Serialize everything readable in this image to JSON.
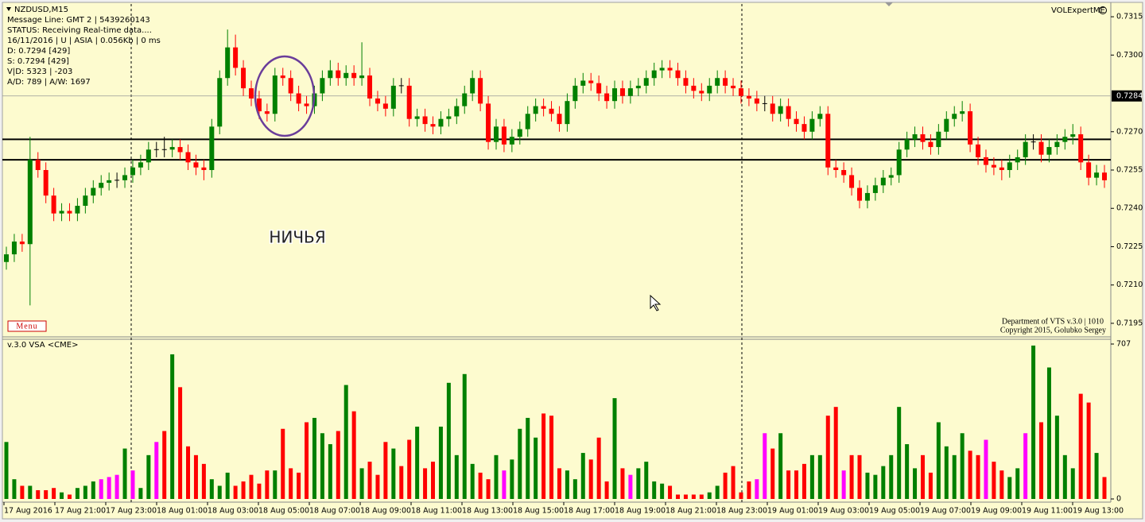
{
  "chart_data": [
    {
      "type": "candlestick",
      "title": "NZDUSD,M15",
      "info_lines": [
        "Message Line: GMT 2 | 5439260143",
        "STATUS:  Receiving Real-time data....",
        "16/11/2016 | U | ASIA | 0.056Kb | 0 ms",
        "D: 0.7294  [429]",
        "S: 0.7294  [429]",
        "V|D: 5323 | -203",
        "A/D: 789 | A/W: 1697"
      ],
      "indicator_label": "VOLExpertME",
      "annotation": "НИЧЬЯ",
      "menu": "Menu",
      "footer": [
        "Department of VTS  v.3.0 | 1010",
        "Copyright 2015, Golubko Sergey"
      ],
      "up_color": "green",
      "down_color": "red",
      "doji_color": "black",
      "open": [
        0.7219,
        0.7222,
        0.7227,
        0.7226,
        0.7259,
        0.7255,
        0.7245,
        0.7238,
        0.7239,
        0.7238,
        0.7241,
        0.7245,
        0.7248,
        0.725,
        0.7251,
        0.7251,
        0.7253,
        0.7256,
        0.7258,
        0.7263,
        0.7263,
        0.7263,
        0.7264,
        0.7262,
        0.7258,
        0.7256,
        0.7255,
        0.7272,
        0.7291,
        0.7303,
        0.7295,
        0.7287,
        0.7283,
        0.7278,
        0.7277,
        0.7292,
        0.7291,
        0.7285,
        0.7281,
        0.728,
        0.7285,
        0.7291,
        0.7294,
        0.7291,
        0.7293,
        0.7291,
        0.7292,
        0.7283,
        0.7281,
        0.7279,
        0.7288,
        0.7288,
        0.7275,
        0.7276,
        0.7273,
        0.7272,
        0.7275,
        0.7276,
        0.728,
        0.7285,
        0.7291,
        0.7281,
        0.7266,
        0.7272,
        0.7265,
        0.7268,
        0.7271,
        0.7277,
        0.728,
        0.7279,
        0.7277,
        0.7273,
        0.7282,
        0.7288,
        0.729,
        0.7289,
        0.7285,
        0.7282,
        0.7287,
        0.7284,
        0.7287,
        0.7288,
        0.7291,
        0.7294,
        0.7295,
        0.7294,
        0.7291,
        0.7288,
        0.7286,
        0.7285,
        0.7288,
        0.7291,
        0.7288,
        0.7287,
        0.7284,
        0.7283,
        0.7281,
        0.7281,
        0.7277,
        0.728,
        0.7275,
        0.7273,
        0.727,
        0.7275,
        0.7277,
        0.7256,
        0.7255,
        0.7253,
        0.7248,
        0.7243,
        0.7246,
        0.7249,
        0.7252,
        0.7253,
        0.7263,
        0.7267,
        0.7269,
        0.7266,
        0.7264,
        0.727,
        0.7275,
        0.7277,
        0.7278,
        0.7265,
        0.726,
        0.7257,
        0.7256,
        0.7255,
        0.7258,
        0.726,
        0.7266,
        0.7266,
        0.7261,
        0.7264,
        0.7266,
        0.7268,
        0.7269,
        0.7258,
        0.7252,
        0.7254
      ],
      "high": [
        0.7225,
        0.723,
        0.723,
        0.7268,
        0.7262,
        0.7258,
        0.7248,
        0.7242,
        0.7242,
        0.7244,
        0.7248,
        0.7251,
        0.7253,
        0.7254,
        0.7254,
        0.7256,
        0.7259,
        0.7261,
        0.7266,
        0.7266,
        0.7268,
        0.7267,
        0.7267,
        0.7265,
        0.7261,
        0.7259,
        0.7275,
        0.7294,
        0.731,
        0.7308,
        0.7298,
        0.729,
        0.7286,
        0.7281,
        0.7295,
        0.7295,
        0.7294,
        0.7288,
        0.7284,
        0.7288,
        0.7294,
        0.7298,
        0.7297,
        0.7296,
        0.7296,
        0.7305,
        0.7295,
        0.7286,
        0.7284,
        0.7291,
        0.7291,
        0.7291,
        0.7279,
        0.7279,
        0.7276,
        0.7278,
        0.7279,
        0.7283,
        0.7288,
        0.7294,
        0.7294,
        0.7284,
        0.7275,
        0.7275,
        0.7271,
        0.7274,
        0.728,
        0.7283,
        0.7283,
        0.7282,
        0.728,
        0.7285,
        0.7291,
        0.7293,
        0.7293,
        0.7292,
        0.7288,
        0.729,
        0.729,
        0.729,
        0.7291,
        0.7294,
        0.7297,
        0.7298,
        0.7298,
        0.7297,
        0.7294,
        0.7291,
        0.7289,
        0.7291,
        0.7294,
        0.7294,
        0.7291,
        0.729,
        0.7287,
        0.7286,
        0.7284,
        0.7284,
        0.7283,
        0.7283,
        0.7278,
        0.7276,
        0.7278,
        0.728,
        0.728,
        0.7259,
        0.7258,
        0.7256,
        0.7251,
        0.7249,
        0.7252,
        0.7255,
        0.7256,
        0.7266,
        0.727,
        0.7272,
        0.7272,
        0.7269,
        0.7273,
        0.7278,
        0.728,
        0.7282,
        0.7281,
        0.7268,
        0.7263,
        0.726,
        0.7259,
        0.7261,
        0.7263,
        0.7269,
        0.7269,
        0.7269,
        0.7267,
        0.7269,
        0.7271,
        0.7273,
        0.7272,
        0.7261,
        0.7257,
        0.7257
      ],
      "low": [
        0.7216,
        0.7219,
        0.7223,
        0.7202,
        0.7252,
        0.7242,
        0.7235,
        0.7235,
        0.7235,
        0.7235,
        0.7238,
        0.7242,
        0.7245,
        0.7247,
        0.7248,
        0.7248,
        0.725,
        0.7253,
        0.7255,
        0.726,
        0.726,
        0.726,
        0.7259,
        0.7255,
        0.7253,
        0.7251,
        0.7252,
        0.7269,
        0.7288,
        0.7292,
        0.7284,
        0.728,
        0.7275,
        0.7274,
        0.7274,
        0.7288,
        0.7282,
        0.7278,
        0.7277,
        0.7277,
        0.7282,
        0.7288,
        0.7288,
        0.7288,
        0.7288,
        0.7288,
        0.728,
        0.7278,
        0.7276,
        0.7276,
        0.7285,
        0.7272,
        0.7272,
        0.727,
        0.7269,
        0.7269,
        0.7272,
        0.7273,
        0.7277,
        0.7282,
        0.7278,
        0.7263,
        0.7263,
        0.7262,
        0.7262,
        0.7265,
        0.7268,
        0.7274,
        0.7276,
        0.7274,
        0.727,
        0.727,
        0.7279,
        0.7285,
        0.7286,
        0.7282,
        0.7279,
        0.7279,
        0.7281,
        0.7281,
        0.7284,
        0.7285,
        0.7288,
        0.7291,
        0.7291,
        0.7288,
        0.7285,
        0.7283,
        0.7282,
        0.7282,
        0.7285,
        0.7285,
        0.7284,
        0.7281,
        0.728,
        0.7278,
        0.7278,
        0.7274,
        0.7274,
        0.7272,
        0.727,
        0.7267,
        0.7267,
        0.7272,
        0.7253,
        0.7252,
        0.725,
        0.7245,
        0.724,
        0.724,
        0.7243,
        0.7246,
        0.7249,
        0.725,
        0.726,
        0.7264,
        0.7263,
        0.7261,
        0.7261,
        0.7267,
        0.7272,
        0.7274,
        0.7262,
        0.7257,
        0.7254,
        0.7253,
        0.7251,
        0.7252,
        0.7255,
        0.7257,
        0.7263,
        0.7258,
        0.7258,
        0.7261,
        0.7263,
        0.7265,
        0.7255,
        0.7249,
        0.7249,
        0.7248
      ],
      "close": [
        0.7222,
        0.7227,
        0.7226,
        0.7259,
        0.7255,
        0.7245,
        0.7238,
        0.7239,
        0.7238,
        0.7241,
        0.7245,
        0.7248,
        0.725,
        0.7251,
        0.7251,
        0.7253,
        0.7256,
        0.7258,
        0.7263,
        0.7263,
        0.7263,
        0.7264,
        0.7262,
        0.7258,
        0.7256,
        0.7255,
        0.7272,
        0.7291,
        0.7303,
        0.7295,
        0.7287,
        0.7283,
        0.7278,
        0.7277,
        0.7292,
        0.7291,
        0.7285,
        0.7281,
        0.728,
        0.7285,
        0.7291,
        0.7294,
        0.7291,
        0.7293,
        0.7291,
        0.7292,
        0.7283,
        0.7281,
        0.7279,
        0.7288,
        0.7288,
        0.7275,
        0.7276,
        0.7273,
        0.7272,
        0.7275,
        0.7276,
        0.728,
        0.7285,
        0.7291,
        0.7281,
        0.7266,
        0.7272,
        0.7265,
        0.7268,
        0.7271,
        0.7277,
        0.728,
        0.7279,
        0.7277,
        0.7273,
        0.7282,
        0.7288,
        0.729,
        0.7289,
        0.7285,
        0.7282,
        0.7287,
        0.7284,
        0.7287,
        0.7288,
        0.7291,
        0.7294,
        0.7295,
        0.7294,
        0.7291,
        0.7288,
        0.7286,
        0.7285,
        0.7288,
        0.7291,
        0.7288,
        0.7287,
        0.7284,
        0.7283,
        0.7281,
        0.7281,
        0.7277,
        0.728,
        0.7275,
        0.7273,
        0.727,
        0.7275,
        0.7277,
        0.7256,
        0.7255,
        0.7253,
        0.7248,
        0.7243,
        0.7246,
        0.7249,
        0.7252,
        0.7253,
        0.7263,
        0.7267,
        0.7269,
        0.7266,
        0.7264,
        0.727,
        0.7275,
        0.7277,
        0.7278,
        0.7265,
        0.726,
        0.7257,
        0.7256,
        0.7255,
        0.7258,
        0.726,
        0.7266,
        0.7266,
        0.7261,
        0.7264,
        0.7266,
        0.7268,
        0.7269,
        0.7258,
        0.7252,
        0.7254,
        0.7251
      ],
      "ylim": [
        0.719,
        0.732
      ],
      "yticks": [
        0.7315,
        {
          "value": 0.73,
          "label": "0.7300"
        },
        {
          "value": 0.727,
          "label": "0.7270"
        },
        0.7255,
        {
          "value": 0.724,
          "label": "0.7240"
        },
        0.7225,
        {
          "value": 0.721,
          "label": "0.7210"
        },
        0.7195
      ],
      "current_price": 0.7284,
      "levels": [
        0.7267,
        0.7259
      ],
      "x_labels": [
        "17 Aug 2016",
        "17 Aug 21:00",
        "17 Aug 23:00",
        "18 Aug 01:00",
        "18 Aug 03:00",
        "18 Aug 05:00",
        "18 Aug 07:00",
        "18 Aug 09:00",
        "18 Aug 11:00",
        "18 Aug 13:00",
        "18 Aug 15:00",
        "18 Aug 17:00",
        "18 Aug 19:00",
        "18 Aug 21:00",
        "18 Aug 23:00",
        "19 Aug 01:00",
        "19 Aug 03:00",
        "19 Aug 05:00",
        "19 Aug 07:00",
        "19 Aug 09:00",
        "19 Aug 11:00",
        "19 Aug 13:00"
      ]
    },
    {
      "type": "bar",
      "title": "v.3.0 VSA <CME>",
      "values": [
        260,
        90,
        60,
        60,
        40,
        40,
        50,
        30,
        20,
        50,
        60,
        80,
        90,
        100,
        110,
        230,
        130,
        50,
        200,
        260,
        310,
        660,
        510,
        240,
        200,
        160,
        90,
        60,
        120,
        60,
        80,
        110,
        70,
        130,
        130,
        320,
        140,
        120,
        350,
        370,
        300,
        250,
        310,
        520,
        400,
        140,
        170,
        110,
        260,
        230,
        150,
        270,
        330,
        140,
        170,
        330,
        530,
        200,
        570,
        160,
        120,
        90,
        200,
        130,
        180,
        320,
        370,
        280,
        390,
        380,
        140,
        130,
        90,
        210,
        180,
        280,
        80,
        460,
        140,
        110,
        140,
        170,
        80,
        70,
        60,
        20,
        20,
        20,
        20,
        30,
        60,
        120,
        150,
        30,
        80,
        90,
        300,
        230,
        300,
        130,
        130,
        160,
        200,
        200,
        380,
        420,
        130,
        200,
        200,
        120,
        110,
        150,
        200,
        420,
        250,
        140,
        200,
        120,
        350,
        240,
        200,
        300,
        220,
        200,
        270,
        170,
        130,
        100,
        140,
        300,
        700,
        350,
        600,
        380,
        200,
        140,
        480,
        440,
        210,
        100
      ],
      "colors": [
        "green",
        "green",
        "red",
        "green",
        "red",
        "red",
        "red",
        "green",
        "red",
        "green",
        "green",
        "green",
        "magenta",
        "magenta",
        "magenta",
        "green",
        "magenta",
        "green",
        "green",
        "magenta",
        "red",
        "green",
        "red",
        "red",
        "red",
        "red",
        "green",
        "green",
        "green",
        "red",
        "red",
        "red",
        "red",
        "red",
        "green",
        "red",
        "red",
        "red",
        "red",
        "green",
        "green",
        "green",
        "red",
        "green",
        "red",
        "green",
        "red",
        "red",
        "red",
        "green",
        "red",
        "red",
        "green",
        "red",
        "red",
        "green",
        "green",
        "green",
        "green",
        "green",
        "red",
        "red",
        "green",
        "magenta",
        "green",
        "green",
        "green",
        "green",
        "red",
        "red",
        "red",
        "green",
        "green",
        "green",
        "red",
        "red",
        "red",
        "green",
        "red",
        "magenta",
        "green",
        "green",
        "green",
        "green",
        "red",
        "red",
        "red",
        "red",
        "red",
        "green",
        "green",
        "red",
        "red",
        "red",
        "red",
        "magenta",
        "magenta",
        "red",
        "green",
        "red",
        "red",
        "red",
        "green",
        "green",
        "red",
        "red",
        "magenta",
        "red",
        "red",
        "green",
        "green",
        "green",
        "green",
        "green",
        "green",
        "green",
        "red",
        "red",
        "green",
        "green",
        "green",
        "green",
        "red",
        "red",
        "magenta",
        "red",
        "red",
        "green",
        "green",
        "magenta",
        "green",
        "red",
        "green",
        "green",
        "green",
        "green",
        "red",
        "red",
        "green",
        "red"
      ],
      "ylim": [
        0,
        707
      ],
      "yticks": [
        707,
        0
      ]
    }
  ]
}
